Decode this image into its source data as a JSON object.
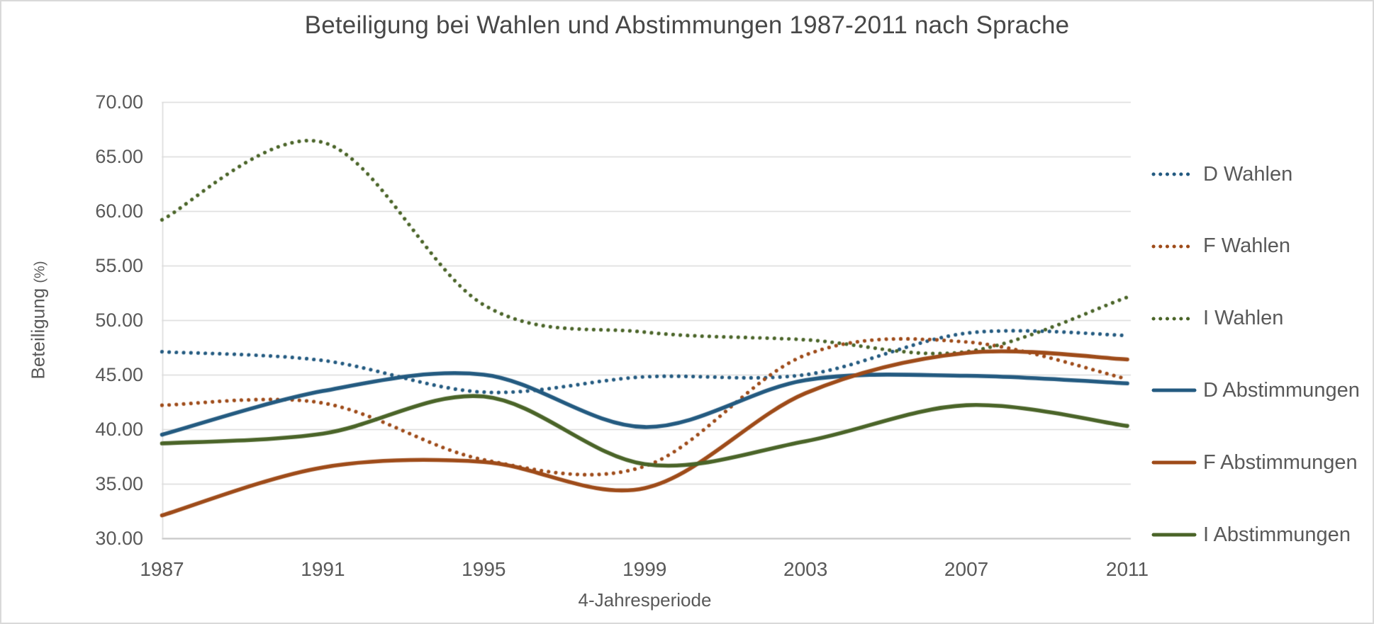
{
  "chart_data": {
    "type": "line",
    "line_shape": "smooth",
    "title": "Beteiligung bei Wahlen und Abstimmungen 1987-2011 nach Sprache",
    "xlabel": "4-Jahresperiode",
    "ylabel": "Beteiligung",
    "ylabel_unit": "(%)",
    "x": [
      1987,
      1991,
      1995,
      1999,
      2003,
      2007,
      2011
    ],
    "xtick_labels": [
      "1987",
      "1991",
      "1995",
      "1999",
      "2003",
      "2007",
      "2011"
    ],
    "ylim": [
      30,
      70
    ],
    "ytick_values": [
      70,
      65,
      60,
      55,
      50,
      45,
      40,
      35,
      30
    ],
    "ytick_labels": [
      "70.00",
      "65.00",
      "60.00",
      "55.00",
      "50.00",
      "45.00",
      "40.00",
      "35.00",
      "30.00"
    ],
    "grid": "horizontal",
    "legend_position": "right",
    "series": [
      {
        "name": "D Wahlen",
        "style": "dotted",
        "color": "#235A80",
        "values": [
          47.1,
          46.3,
          43.4,
          44.8,
          45.0,
          48.8,
          48.6
        ]
      },
      {
        "name": "F Wahlen",
        "style": "dotted",
        "color": "#9E4B19",
        "values": [
          42.2,
          42.4,
          37.2,
          36.6,
          46.8,
          48.0,
          44.6
        ]
      },
      {
        "name": "I Wahlen",
        "style": "dotted",
        "color": "#4A6428",
        "values": [
          59.2,
          66.3,
          51.4,
          48.9,
          48.2,
          47.1,
          52.1
        ]
      },
      {
        "name": "D Abstimmungen",
        "style": "solid",
        "color": "#235A80",
        "values": [
          39.5,
          43.5,
          45.0,
          40.2,
          44.5,
          44.9,
          44.2
        ]
      },
      {
        "name": "F Abstimmungen",
        "style": "solid",
        "color": "#9E4B19",
        "values": [
          32.1,
          36.5,
          37.0,
          34.6,
          43.3,
          47.0,
          46.4
        ]
      },
      {
        "name": "I Abstimmungen",
        "style": "solid",
        "color": "#4A6428",
        "values": [
          38.7,
          39.6,
          43.0,
          36.8,
          38.9,
          42.2,
          40.3
        ]
      }
    ]
  },
  "colors": {
    "title_text": "#474747",
    "axis_text": "#595959",
    "grid_line": "#D9D9D9",
    "axis_line": "#BFBFBF",
    "frame_border": "#D9D9D9",
    "background": "#FFFFFF"
  }
}
